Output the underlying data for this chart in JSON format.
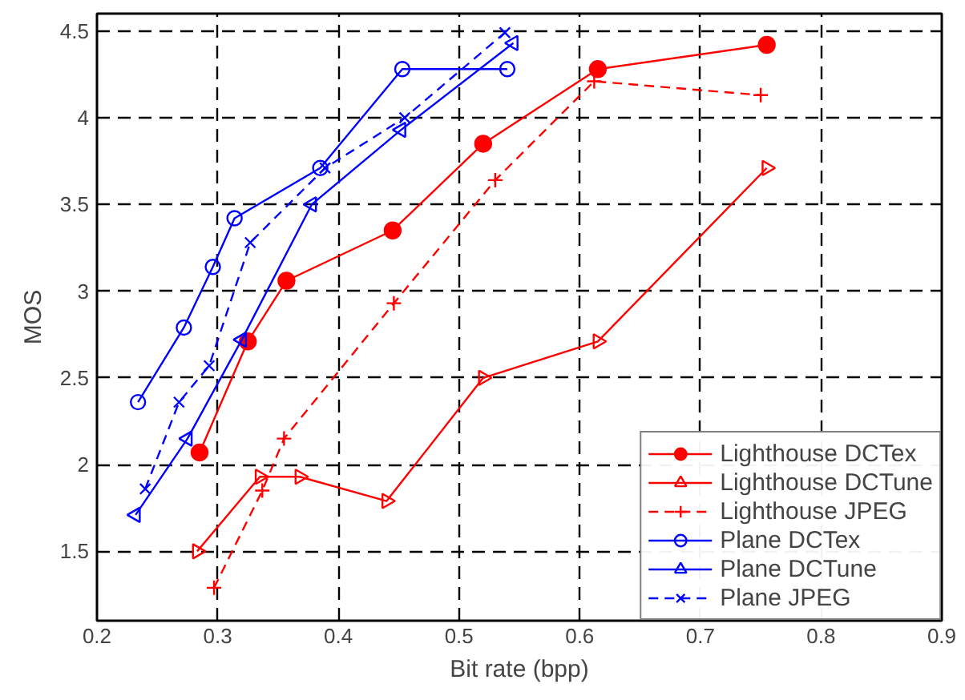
{
  "chart_data": {
    "type": "line",
    "xlabel": "Bit rate (bpp)",
    "ylabel": "MOS",
    "xlim": [
      0.2,
      0.9
    ],
    "xticks": [
      0.2,
      0.3,
      0.4,
      0.5,
      0.6,
      0.7,
      0.8,
      0.9
    ],
    "ylim": [
      1.1,
      4.6
    ],
    "yticks": [
      1.5,
      2,
      2.5,
      3,
      3.5,
      4,
      4.5
    ],
    "grid": true,
    "legend": "bottom right",
    "series": [
      {
        "name": "Lighthouse DCTex",
        "color": "#ff0000",
        "marker": "filled_circle",
        "line_style": "solid",
        "x": [
          0.285,
          0.325,
          0.357,
          0.445,
          0.52,
          0.615,
          0.755
        ],
        "values": [
          2.07,
          2.71,
          3.06,
          3.35,
          3.85,
          4.28,
          4.42
        ]
      },
      {
        "name": "Lighthouse DCTune",
        "color": "#ff0000",
        "marker": "triangle_right",
        "line_style": "solid",
        "x": [
          0.283,
          0.335,
          0.368,
          0.44,
          0.52,
          0.615,
          0.755
        ],
        "values": [
          1.5,
          1.93,
          1.93,
          1.79,
          2.5,
          2.71,
          3.71
        ]
      },
      {
        "name": "Lighthouse JPEG",
        "color": "#ff0000",
        "marker": "cross",
        "line_style": "dashed",
        "x": [
          0.297,
          0.337,
          0.355,
          0.446,
          0.53,
          0.612,
          0.75
        ],
        "values": [
          1.29,
          1.85,
          2.15,
          2.93,
          3.64,
          4.21,
          4.13
        ]
      },
      {
        "name": "Plane DCTex",
        "color": "#0000ff",
        "marker": "circle",
        "line_style": "solid",
        "x": [
          0.234,
          0.272,
          0.296,
          0.314,
          0.385,
          0.453,
          0.54
        ],
        "values": [
          2.36,
          2.79,
          3.14,
          3.42,
          3.71,
          4.28,
          4.28
        ]
      },
      {
        "name": "Plane DCTune",
        "color": "#0000ff",
        "marker": "triangle_left",
        "line_style": "solid",
        "x": [
          0.232,
          0.275,
          0.32,
          0.378,
          0.452,
          0.545
        ],
        "values": [
          1.71,
          2.15,
          2.72,
          3.5,
          3.93,
          4.43
        ]
      },
      {
        "name": "Plane JPEG",
        "color": "#0000ff",
        "marker": "x",
        "line_style": "dashed",
        "x": [
          0.24,
          0.268,
          0.293,
          0.327,
          0.389,
          0.455,
          0.538
        ],
        "values": [
          1.86,
          2.36,
          2.57,
          3.28,
          3.71,
          4.0,
          4.49
        ]
      }
    ]
  }
}
